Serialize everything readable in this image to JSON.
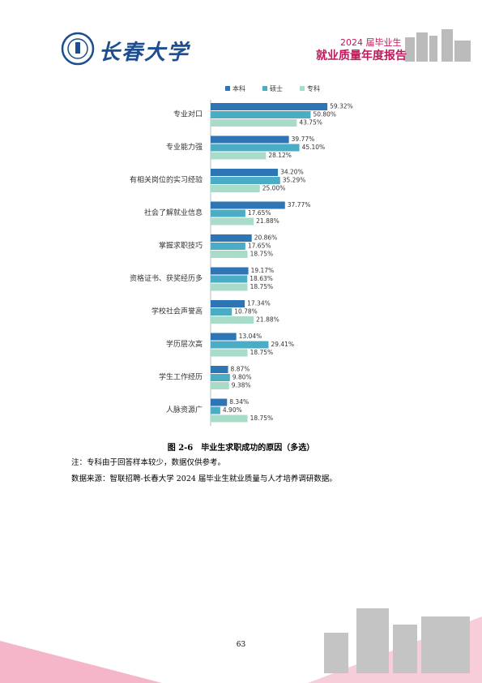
{
  "header": {
    "logo_text": "长春大学",
    "year_line": "2024 届毕业生",
    "report_title": "就业质量年度报告"
  },
  "chart_data": {
    "type": "bar",
    "orientation": "horizontal",
    "categories": [
      "专业对口",
      "专业能力强",
      "有相关岗位的实习经验",
      "社会了解就业信息",
      "掌握求职技巧",
      "资格证书、获奖经历多",
      "学校社会声誉高",
      "学历层次高",
      "学生工作经历",
      "人脉资源广"
    ],
    "series": [
      {
        "name": "本科",
        "color": "#2e75b6",
        "values": [
          59.32,
          39.77,
          34.2,
          37.77,
          20.86,
          19.17,
          17.34,
          13.04,
          8.87,
          8.34
        ],
        "value_labels": [
          "59.32%",
          "39.77%",
          "34.20%",
          "37.77%",
          "20.86%",
          "19.17%",
          "17.34%",
          "13.04%",
          "8.87%",
          "8.34%"
        ]
      },
      {
        "name": "硕士",
        "color": "#4bacc6",
        "values": [
          50.8,
          45.1,
          35.29,
          17.65,
          17.65,
          18.63,
          10.78,
          29.41,
          9.8,
          4.9
        ],
        "value_labels": [
          "50.80%",
          "45.10%",
          "35.29%",
          "17.65%",
          "17.65%",
          "18.63%",
          "10.78%",
          "29.41%",
          "9.80%",
          "4.90%"
        ]
      },
      {
        "name": "专科",
        "color": "#a8dcc8",
        "values": [
          43.75,
          28.12,
          25.0,
          21.88,
          18.75,
          18.75,
          21.88,
          18.75,
          9.38,
          18.75
        ],
        "value_labels": [
          "43.75%",
          "28.12%",
          "25.00%",
          "21.88%",
          "18.75%",
          "18.75%",
          "21.88%",
          "18.75%",
          "9.38%",
          "18.75%"
        ]
      }
    ],
    "legend": "top"
  },
  "caption": "图 2-6　毕业生求职成功的原因（多选）",
  "notes": [
    "注：专科由于回答样本较少，数据仅供参考。",
    "数据来源：智联招聘-长春大学 2024 届毕业生就业质量与人才培养调研数据。"
  ],
  "page_number": "63"
}
